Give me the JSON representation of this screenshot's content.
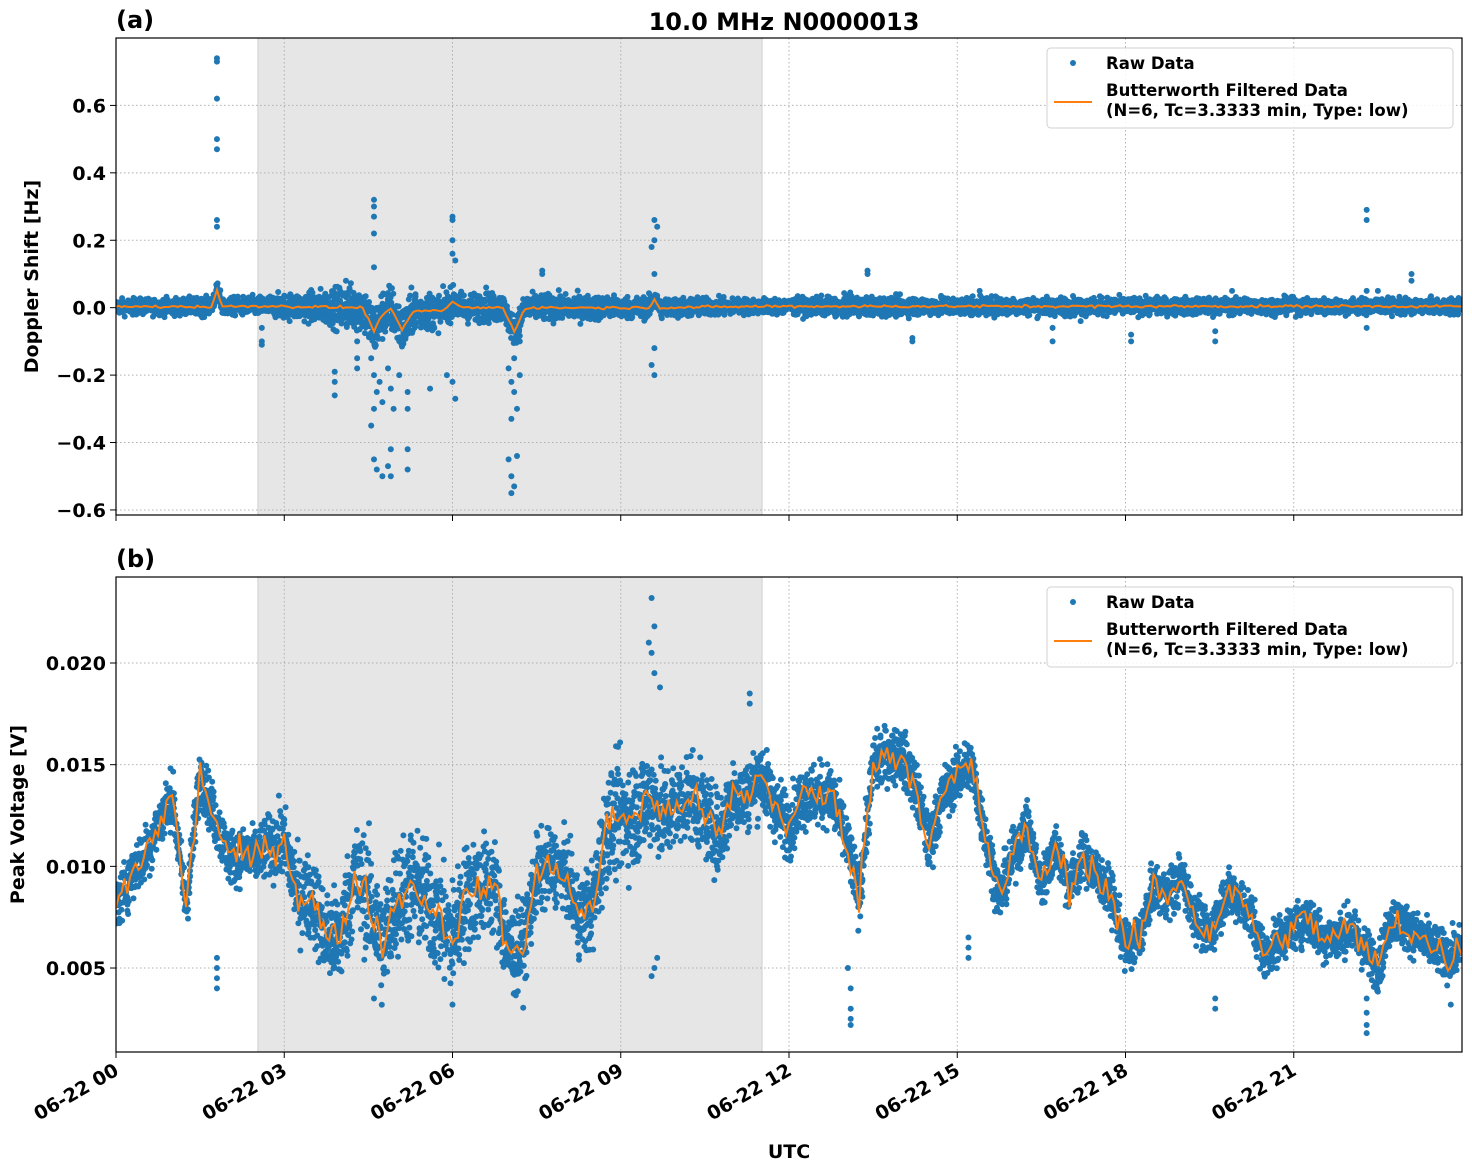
{
  "title": "10.0 MHz N0000013",
  "xlabel": "UTC",
  "x_tick_labels": [
    "06-22 00",
    "06-22 03",
    "06-22 06",
    "06-22 09",
    "06-22 12",
    "06-22 15",
    "06-22 18",
    "06-22 21"
  ],
  "colors": {
    "raw": "#1f77b4",
    "filtered": "#ff7f0e",
    "shade": "#e6e6e6",
    "grid": "#b0b0b0"
  },
  "chart_data": [
    {
      "type": "scatter",
      "panel_label": "(a)",
      "ylabel": "Doppler Shift [Hz]",
      "x_unit": "hours UTC on 06-22",
      "xlim": [
        0,
        24
      ],
      "ylim": [
        -0.615,
        0.8
      ],
      "y_ticks": [
        -0.6,
        -0.4,
        -0.2,
        0.0,
        0.2,
        0.4,
        0.6
      ],
      "y_tick_labels": [
        "−0.6",
        "−0.4",
        "−0.2",
        "0.0",
        "0.2",
        "0.4",
        "0.6"
      ],
      "grid": true,
      "shaded_region_hours": [
        2.53,
        11.52
      ],
      "legend": {
        "placement": "top-right",
        "entries": [
          "Raw Data",
          "Butterworth Filtered Data",
          "(N=6, Tc=3.3333 min, Type: low)"
        ]
      },
      "filtered": {
        "x": [
          0,
          1.7,
          1.8,
          1.9,
          2.5,
          4.4,
          4.6,
          4.75,
          4.9,
          5.1,
          5.3,
          5.8,
          6.0,
          6.2,
          6.9,
          7.1,
          7.3,
          9.5,
          9.6,
          9.7,
          11.5,
          24
        ],
        "y": [
          0.003,
          0.003,
          0.05,
          0.003,
          0.005,
          0.0,
          -0.07,
          -0.02,
          0.0,
          -0.07,
          -0.01,
          -0.01,
          0.015,
          0.0,
          0.0,
          -0.07,
          0.0,
          0.0,
          0.025,
          0.0,
          0.004,
          0.004
        ]
      },
      "raw_spread": {
        "x": [
          0,
          2.5,
          3.5,
          4.6,
          6,
          7.5,
          9,
          11.5,
          13,
          24
        ],
        "half_width": [
          0.02,
          0.025,
          0.04,
          0.07,
          0.04,
          0.035,
          0.03,
          0.02,
          0.025,
          0.02
        ]
      },
      "outliers": [
        [
          1.8,
          0.74
        ],
        [
          1.8,
          0.73
        ],
        [
          1.8,
          0.62
        ],
        [
          1.8,
          0.5
        ],
        [
          1.8,
          0.47
        ],
        [
          1.8,
          0.26
        ],
        [
          1.8,
          0.24
        ],
        [
          1.8,
          0.06
        ],
        [
          2.6,
          -0.06
        ],
        [
          2.6,
          -0.1
        ],
        [
          2.6,
          -0.11
        ],
        [
          3.9,
          -0.19
        ],
        [
          3.9,
          -0.22
        ],
        [
          3.9,
          -0.26
        ],
        [
          4.1,
          0.08
        ],
        [
          4.3,
          -0.1
        ],
        [
          4.3,
          -0.15
        ],
        [
          4.3,
          -0.18
        ],
        [
          4.6,
          0.32
        ],
        [
          4.6,
          0.3
        ],
        [
          4.6,
          0.27
        ],
        [
          4.6,
          0.22
        ],
        [
          4.6,
          0.12
        ],
        [
          4.55,
          -0.15
        ],
        [
          4.6,
          -0.2
        ],
        [
          4.65,
          -0.25
        ],
        [
          4.6,
          -0.3
        ],
        [
          4.7,
          -0.22
        ],
        [
          4.75,
          -0.28
        ],
        [
          4.55,
          -0.35
        ],
        [
          4.6,
          -0.45
        ],
        [
          4.65,
          -0.48
        ],
        [
          4.75,
          -0.5
        ],
        [
          4.85,
          -0.18
        ],
        [
          4.9,
          -0.24
        ],
        [
          4.95,
          -0.3
        ],
        [
          4.9,
          -0.42
        ],
        [
          4.85,
          -0.47
        ],
        [
          4.9,
          -0.5
        ],
        [
          5.05,
          -0.2
        ],
        [
          5.1,
          -0.1
        ],
        [
          5.2,
          -0.25
        ],
        [
          5.2,
          -0.3
        ],
        [
          5.2,
          -0.42
        ],
        [
          5.2,
          -0.48
        ],
        [
          5.6,
          -0.24
        ],
        [
          5.9,
          -0.2
        ],
        [
          6.0,
          0.27
        ],
        [
          6.0,
          0.26
        ],
        [
          6.0,
          0.2
        ],
        [
          6.0,
          0.16
        ],
        [
          6.05,
          0.14
        ],
        [
          6.0,
          -0.22
        ],
        [
          6.05,
          -0.27
        ],
        [
          6.6,
          0.06
        ],
        [
          7.0,
          -0.18
        ],
        [
          7.05,
          -0.22
        ],
        [
          7.1,
          -0.25
        ],
        [
          7.15,
          -0.3
        ],
        [
          7.05,
          -0.33
        ],
        [
          7.1,
          -0.15
        ],
        [
          7.2,
          -0.2
        ],
        [
          7.0,
          -0.45
        ],
        [
          7.05,
          -0.5
        ],
        [
          7.1,
          -0.53
        ],
        [
          7.05,
          -0.55
        ],
        [
          7.15,
          -0.44
        ],
        [
          7.2,
          -0.1
        ],
        [
          7.6,
          0.11
        ],
        [
          7.6,
          0.1
        ],
        [
          9.6,
          0.26
        ],
        [
          9.65,
          0.24
        ],
        [
          9.6,
          0.2
        ],
        [
          9.55,
          0.18
        ],
        [
          9.6,
          0.1
        ],
        [
          9.6,
          -0.12
        ],
        [
          9.55,
          -0.17
        ],
        [
          9.6,
          -0.2
        ],
        [
          13.4,
          0.1
        ],
        [
          13.4,
          0.11
        ],
        [
          14.2,
          -0.1
        ],
        [
          14.2,
          -0.09
        ],
        [
          15.4,
          0.05
        ],
        [
          16.7,
          -0.06
        ],
        [
          16.7,
          -0.1
        ],
        [
          17.2,
          -0.04
        ],
        [
          18.1,
          -0.08
        ],
        [
          18.1,
          -0.1
        ],
        [
          19.6,
          -0.07
        ],
        [
          19.6,
          -0.1
        ],
        [
          19.9,
          0.05
        ],
        [
          22.3,
          0.29
        ],
        [
          22.3,
          0.26
        ],
        [
          22.3,
          0.05
        ],
        [
          22.3,
          -0.06
        ],
        [
          22.5,
          0.05
        ],
        [
          23.1,
          0.1
        ],
        [
          23.1,
          0.08
        ]
      ]
    },
    {
      "type": "scatter",
      "panel_label": "(b)",
      "ylabel": "Peak Voltage [V]",
      "x_unit": "hours UTC on 06-22",
      "xlim": [
        0,
        24
      ],
      "ylim": [
        0.00087,
        0.02423
      ],
      "y_ticks": [
        0.005,
        0.01,
        0.015,
        0.02
      ],
      "y_tick_labels": [
        "0.005",
        "0.010",
        "0.015",
        "0.020"
      ],
      "grid": true,
      "shaded_region_hours": [
        2.53,
        11.52
      ],
      "legend": {
        "placement": "top-right",
        "entries": [
          "Raw Data",
          "Butterworth Filtered Data",
          "(N=6, Tc=3.3333 min, Type: low)"
        ]
      },
      "filtered": {
        "x_step_hours": 0.25,
        "y": [
          0.008,
          0.0095,
          0.0105,
          0.012,
          0.0135,
          0.008,
          0.0145,
          0.0125,
          0.0105,
          0.0105,
          0.0105,
          0.011,
          0.0112,
          0.0085,
          0.0085,
          0.0065,
          0.0065,
          0.0095,
          0.0085,
          0.006,
          0.0085,
          0.009,
          0.0085,
          0.0075,
          0.0065,
          0.0085,
          0.009,
          0.009,
          0.0057,
          0.006,
          0.0095,
          0.01,
          0.0098,
          0.0075,
          0.008,
          0.012,
          0.0125,
          0.0125,
          0.0135,
          0.0125,
          0.013,
          0.0135,
          0.0125,
          0.0115,
          0.0135,
          0.0135,
          0.0145,
          0.013,
          0.012,
          0.0135,
          0.0135,
          0.0135,
          0.0115,
          0.0085,
          0.015,
          0.0155,
          0.0155,
          0.014,
          0.011,
          0.0135,
          0.0145,
          0.015,
          0.0115,
          0.0085,
          0.0105,
          0.012,
          0.009,
          0.011,
          0.009,
          0.0105,
          0.0095,
          0.0085,
          0.006,
          0.0065,
          0.009,
          0.0085,
          0.0095,
          0.0075,
          0.0065,
          0.0085,
          0.0085,
          0.0075,
          0.0055,
          0.0065,
          0.007,
          0.0075,
          0.0065,
          0.0065,
          0.007,
          0.006,
          0.005,
          0.0075,
          0.007,
          0.0065,
          0.006,
          0.0055,
          0.006
        ]
      },
      "raw_spread": {
        "x": [
          0,
          2.5,
          3,
          4.5,
          6,
          8,
          9,
          10,
          11.5,
          13,
          16,
          24
        ],
        "half_width": [
          0.0012,
          0.0012,
          0.0016,
          0.0025,
          0.0025,
          0.0015,
          0.0025,
          0.002,
          0.0015,
          0.0013,
          0.0011,
          0.001
        ]
      },
      "outliers": [
        [
          1.8,
          0.004
        ],
        [
          1.8,
          0.0045
        ],
        [
          1.8,
          0.005
        ],
        [
          1.8,
          0.0055
        ],
        [
          9.55,
          0.0232
        ],
        [
          9.6,
          0.0218
        ],
        [
          9.5,
          0.021
        ],
        [
          9.55,
          0.0205
        ],
        [
          9.6,
          0.0195
        ],
        [
          9.7,
          0.0188
        ],
        [
          9.55,
          0.0046
        ],
        [
          9.6,
          0.005
        ],
        [
          9.65,
          0.0055
        ],
        [
          11.3,
          0.0185
        ],
        [
          11.3,
          0.018
        ],
        [
          13.1,
          0.0022
        ],
        [
          13.1,
          0.0025
        ],
        [
          13.1,
          0.003
        ],
        [
          13.1,
          0.004
        ],
        [
          13.05,
          0.005
        ],
        [
          15.2,
          0.0055
        ],
        [
          15.2,
          0.006
        ],
        [
          15.2,
          0.0065
        ],
        [
          4.6,
          0.0035
        ],
        [
          6.0,
          0.0032
        ],
        [
          22.3,
          0.0018
        ],
        [
          22.3,
          0.0022
        ],
        [
          22.3,
          0.0028
        ],
        [
          22.3,
          0.0035
        ],
        [
          19.6,
          0.003
        ],
        [
          19.6,
          0.0035
        ],
        [
          23.8,
          0.0032
        ]
      ]
    }
  ]
}
